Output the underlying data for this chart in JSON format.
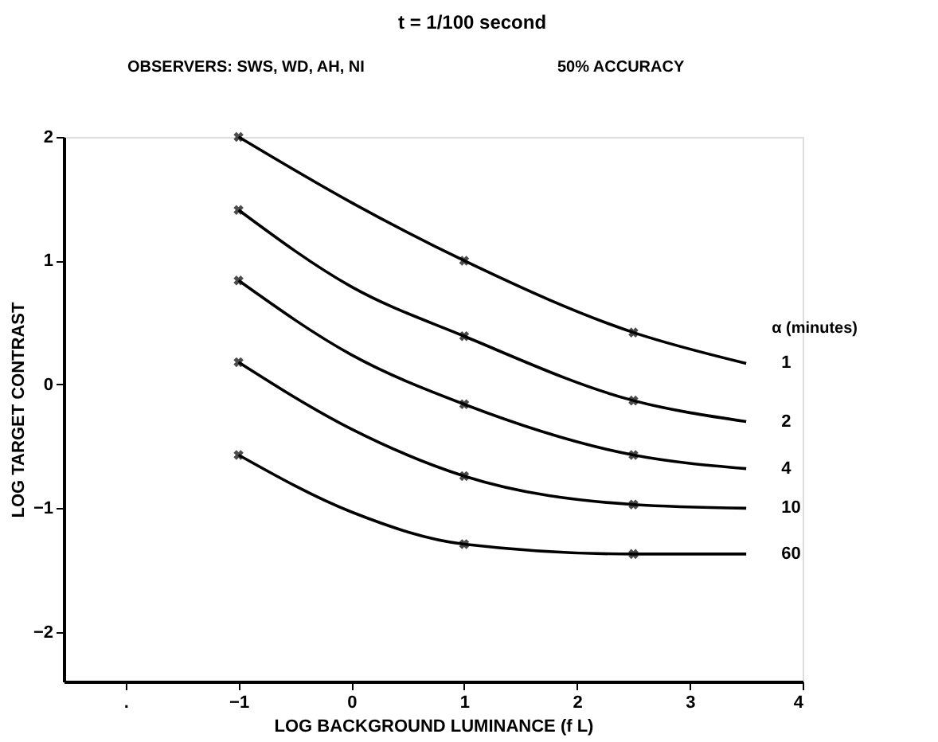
{
  "chart_data": {
    "type": "line",
    "title": "t = 1/100 second",
    "subtitle": "OBSERVERS: SWS, WD, AH, NI",
    "annotations": [
      "50% ACCURACY"
    ],
    "xlabel": "LOG BACKGROUND LUMINANCE (f L)",
    "ylabel": "LOG TARGET CONTRAST",
    "legend_title": "α (minutes)",
    "legend": false,
    "grid": false,
    "xlim": [
      -2.55,
      4
    ],
    "xticks": [
      {
        "value": -2,
        "label": "."
      },
      -1,
      0,
      1,
      2,
      3,
      4
    ],
    "ylim": [
      -2.4,
      2
    ],
    "yticks": [
      -2,
      -1,
      0,
      1,
      2
    ],
    "series": [
      {
        "name": "1",
        "marker": "none",
        "color": "#000000",
        "x": [
          -1,
          0,
          1,
          2.5,
          3.5
        ],
        "values": [
          2.0,
          1.47,
          1.0,
          0.42,
          0.17
        ]
      },
      {
        "name": "2",
        "marker": "none",
        "color": "#000000",
        "x": [
          -1,
          0,
          1,
          2.5,
          3.5
        ],
        "values": [
          1.41,
          0.79,
          0.39,
          -0.13,
          -0.3
        ]
      },
      {
        "name": "4",
        "marker": "none",
        "color": "#000000",
        "x": [
          -1,
          0,
          1,
          2.5,
          3.5
        ],
        "values": [
          0.84,
          0.24,
          -0.16,
          -0.57,
          -0.68
        ]
      },
      {
        "name": "10",
        "marker": "none",
        "color": "#000000",
        "x": [
          -1,
          0,
          1,
          2.5,
          3.5
        ],
        "values": [
          0.18,
          -0.36,
          -0.74,
          -0.97,
          -1.0
        ]
      },
      {
        "name": "60",
        "marker": "none",
        "color": "#000000",
        "x": [
          -1,
          0,
          1,
          2.5,
          3.5
        ],
        "values": [
          -0.57,
          -1.03,
          -1.29,
          -1.37,
          -1.37
        ]
      },
      {
        "type": "scatter",
        "marker": "cross",
        "color": "#000000",
        "x": [
          -1,
          1,
          2.5,
          -1,
          1,
          2.5,
          -1,
          1,
          2.5,
          -1,
          1,
          2.5,
          -1,
          1,
          2.5
        ],
        "values": [
          2.0,
          1.0,
          0.42,
          1.41,
          0.39,
          -0.13,
          0.84,
          -0.16,
          -0.57,
          0.18,
          -0.74,
          -0.97,
          -0.57,
          -1.29,
          -1.37
        ]
      }
    ]
  }
}
